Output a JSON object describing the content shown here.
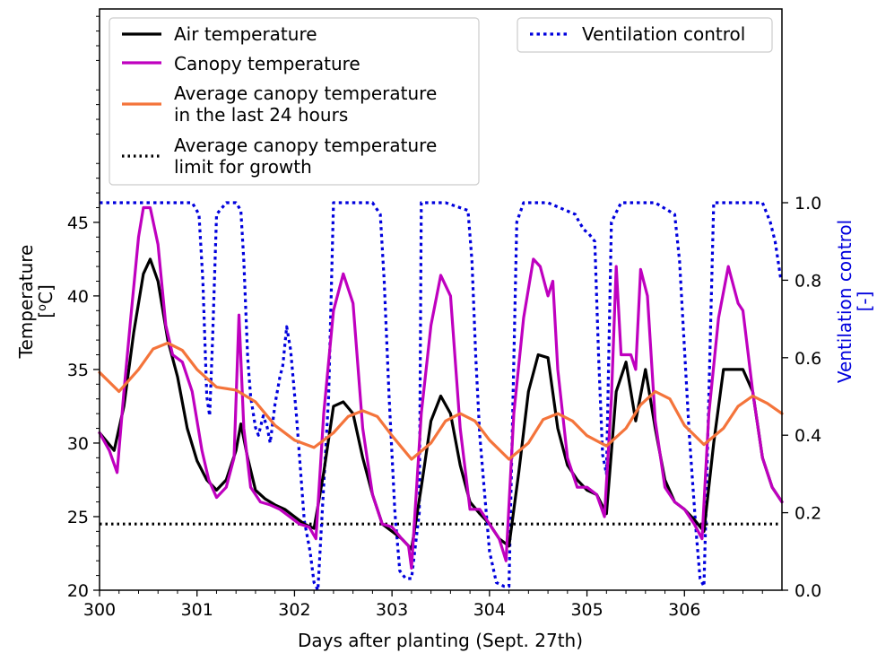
{
  "chart_data": {
    "type": "line",
    "xlabel": "Days after planting (Sept. 27th)",
    "ylabel_left_line1": "Temperature",
    "ylabel_left_line2_prefix": "[",
    "ylabel_left_line2_sup": "o",
    "ylabel_left_line2_suffix": "C]",
    "ylabel_right_line1": "Ventilation control",
    "ylabel_right_line2": "[-]",
    "xlim": [
      300,
      307
    ],
    "ylim_left": [
      20,
      59.5
    ],
    "ylim_right": [
      0,
      1.0
    ],
    "xticks": [
      300,
      301,
      302,
      303,
      304,
      305,
      306
    ],
    "xtick_labels": [
      "300",
      "301",
      "302",
      "303",
      "304",
      "305",
      "306"
    ],
    "yticks_left": [
      20,
      25,
      30,
      35,
      40,
      45
    ],
    "ytick_labels_left": [
      "20",
      "25",
      "30",
      "35",
      "40",
      "45"
    ],
    "yticks_right": [
      0.0,
      0.2,
      0.4,
      0.6,
      0.8,
      1.0
    ],
    "ytick_labels_right": [
      "0.0",
      "0.2",
      "0.4",
      "0.6",
      "0.8",
      "1.0"
    ],
    "grid": false,
    "legend_left": {
      "placement": "top-left",
      "entries": [
        {
          "lines": [
            "Air temperature"
          ],
          "color": "#000000",
          "style": "solid"
        },
        {
          "lines": [
            "Canopy temperature"
          ],
          "color": "#bf00bf",
          "style": "solid"
        },
        {
          "lines": [
            "Average canopy temperature",
            "in the last 24 hours"
          ],
          "color": "#f4743b",
          "style": "solid"
        },
        {
          "lines": [
            "Average canopy temperature",
            "limit for growth"
          ],
          "color": "#000000",
          "style": "dotted"
        }
      ]
    },
    "legend_right": {
      "placement": "top-right",
      "entries": [
        {
          "lines": [
            "Ventilation control"
          ],
          "color": "#0000dd",
          "style": "dotted"
        }
      ]
    },
    "series": [
      {
        "name": "Air temperature",
        "axis": "left",
        "color": "#000000",
        "style": "solid",
        "x": [
          300.0,
          300.15,
          300.25,
          300.35,
          300.45,
          300.52,
          300.6,
          300.7,
          300.8,
          300.9,
          301.0,
          301.1,
          301.2,
          301.3,
          301.4,
          301.45,
          301.52,
          301.6,
          301.7,
          301.8,
          301.9,
          302.0,
          302.1,
          302.2,
          302.3,
          302.4,
          302.5,
          302.6,
          302.7,
          302.8,
          302.9,
          303.0,
          303.1,
          303.2,
          303.3,
          303.4,
          303.5,
          303.6,
          303.7,
          303.8,
          303.9,
          304.0,
          304.1,
          304.2,
          304.3,
          304.4,
          304.5,
          304.6,
          304.7,
          304.8,
          304.9,
          305.0,
          305.1,
          305.2,
          305.3,
          305.4,
          305.5,
          305.6,
          305.7,
          305.8,
          305.9,
          306.0,
          306.1,
          306.2,
          306.3,
          306.4,
          306.5,
          306.6,
          306.7,
          306.8,
          306.9,
          307.0
        ],
        "y": [
          30.7,
          29.5,
          32.5,
          37.5,
          41.5,
          42.5,
          41.0,
          37.0,
          34.5,
          31.0,
          28.8,
          27.5,
          26.8,
          27.5,
          29.5,
          31.3,
          29.0,
          26.8,
          26.2,
          25.8,
          25.5,
          25.0,
          24.5,
          24.2,
          28.0,
          32.5,
          32.8,
          32.0,
          29.0,
          26.5,
          24.5,
          24.0,
          23.5,
          22.8,
          27.0,
          31.5,
          33.2,
          32.0,
          28.5,
          26.0,
          25.2,
          24.5,
          23.5,
          23.0,
          28.0,
          33.5,
          36.0,
          35.8,
          31.0,
          28.5,
          27.5,
          26.8,
          26.5,
          25.2,
          33.5,
          35.5,
          31.5,
          35.0,
          31.0,
          27.5,
          26.0,
          25.5,
          24.8,
          24.0,
          30.0,
          35.0,
          35.0,
          35.0,
          33.5,
          29.0,
          27.0,
          26.0
        ]
      },
      {
        "name": "Canopy temperature",
        "axis": "left",
        "color": "#bf00bf",
        "style": "solid",
        "x": [
          300.0,
          300.1,
          300.18,
          300.25,
          300.32,
          300.4,
          300.45,
          300.52,
          300.6,
          300.68,
          300.75,
          300.85,
          300.95,
          301.05,
          301.12,
          301.2,
          301.3,
          301.38,
          301.43,
          301.48,
          301.55,
          301.65,
          301.75,
          301.85,
          301.95,
          302.05,
          302.15,
          302.22,
          302.3,
          302.4,
          302.5,
          302.6,
          302.7,
          302.8,
          302.9,
          303.0,
          303.1,
          303.17,
          303.2,
          303.3,
          303.4,
          303.5,
          303.6,
          303.7,
          303.8,
          303.9,
          304.0,
          304.1,
          304.17,
          304.25,
          304.35,
          304.45,
          304.52,
          304.6,
          304.65,
          304.7,
          304.8,
          304.9,
          305.0,
          305.1,
          305.18,
          305.25,
          305.3,
          305.35,
          305.45,
          305.5,
          305.55,
          305.62,
          305.7,
          305.8,
          305.9,
          306.0,
          306.1,
          306.18,
          306.25,
          306.35,
          306.45,
          306.55,
          306.6,
          306.7,
          306.8,
          306.9,
          307.0
        ],
        "y": [
          30.7,
          29.5,
          28.0,
          33.5,
          38.5,
          44.0,
          46.0,
          46.0,
          43.5,
          38.0,
          36.0,
          35.5,
          33.5,
          29.5,
          27.5,
          26.3,
          27.0,
          29.0,
          38.7,
          31.0,
          27.0,
          26.0,
          25.8,
          25.5,
          25.0,
          24.5,
          24.3,
          23.5,
          32.0,
          39.0,
          41.5,
          39.5,
          31.0,
          26.5,
          24.5,
          24.3,
          23.5,
          23.0,
          21.5,
          32.0,
          38.0,
          41.4,
          40.0,
          31.0,
          25.5,
          25.5,
          24.5,
          23.5,
          22.0,
          32.0,
          38.5,
          42.5,
          42.0,
          40.0,
          41.0,
          35.0,
          29.0,
          27.0,
          27.0,
          26.5,
          25.0,
          33.0,
          42.0,
          36.0,
          36.0,
          35.0,
          41.8,
          40.0,
          31.5,
          27.0,
          26.0,
          25.5,
          24.5,
          23.5,
          32.0,
          38.5,
          42.0,
          39.5,
          39.0,
          33.5,
          29.0,
          27.0,
          26.0
        ]
      },
      {
        "name": "Average canopy temperature in the last 24 hours",
        "axis": "left",
        "color": "#f4743b",
        "style": "solid",
        "x": [
          300.0,
          300.2,
          300.4,
          300.55,
          300.7,
          300.85,
          301.0,
          301.2,
          301.4,
          301.6,
          301.8,
          302.0,
          302.2,
          302.4,
          302.55,
          302.7,
          302.85,
          303.0,
          303.2,
          303.4,
          303.55,
          303.7,
          303.85,
          304.0,
          304.2,
          304.4,
          304.55,
          304.7,
          304.85,
          305.0,
          305.2,
          305.4,
          305.55,
          305.7,
          305.85,
          306.0,
          306.2,
          306.4,
          306.55,
          306.7,
          306.85,
          307.0
        ],
        "y": [
          34.8,
          33.5,
          35.0,
          36.4,
          36.8,
          36.3,
          35.0,
          33.8,
          33.6,
          32.8,
          31.2,
          30.2,
          29.7,
          30.7,
          31.8,
          32.2,
          31.8,
          30.5,
          28.9,
          30.0,
          31.5,
          32.0,
          31.5,
          30.2,
          28.9,
          30.0,
          31.6,
          32.0,
          31.5,
          30.5,
          29.8,
          31.0,
          32.6,
          33.5,
          33.0,
          31.2,
          29.9,
          31.0,
          32.5,
          33.2,
          32.7,
          32.0
        ]
      },
      {
        "name": "Average canopy temperature limit for growth",
        "axis": "left",
        "color": "#000000",
        "style": "dotted",
        "x": [
          300.0,
          307.0
        ],
        "y": [
          24.5,
          24.5
        ]
      },
      {
        "name": "Ventilation control",
        "axis": "right",
        "color": "#0000dd",
        "style": "dotted",
        "x": [
          300.0,
          300.95,
          301.02,
          301.06,
          301.1,
          301.13,
          301.16,
          301.2,
          301.3,
          301.4,
          301.45,
          301.48,
          301.52,
          301.55,
          301.6,
          301.63,
          301.68,
          301.72,
          301.75,
          301.8,
          301.85,
          301.88,
          301.92,
          301.96,
          302.02,
          302.1,
          302.16,
          302.2,
          302.24,
          302.35,
          302.4,
          302.6,
          302.8,
          302.88,
          302.92,
          302.97,
          303.03,
          303.08,
          303.14,
          303.2,
          303.28,
          303.3,
          303.55,
          303.78,
          303.82,
          303.86,
          303.9,
          303.95,
          304.0,
          304.07,
          304.15,
          304.2,
          304.28,
          304.35,
          304.5,
          304.6,
          304.88,
          304.92,
          304.97,
          305.02,
          305.08,
          305.12,
          305.16,
          305.2,
          305.25,
          305.35,
          305.6,
          305.7,
          305.9,
          305.95,
          306.05,
          306.12,
          306.16,
          306.18,
          306.2,
          306.22,
          306.3,
          306.4,
          306.8,
          306.88,
          306.93,
          306.96,
          306.99
        ],
        "y": [
          1.0,
          1.0,
          0.97,
          0.8,
          0.5,
          0.45,
          0.65,
          0.97,
          1.0,
          1.0,
          0.98,
          0.85,
          0.6,
          0.5,
          0.42,
          0.4,
          0.45,
          0.42,
          0.38,
          0.48,
          0.55,
          0.58,
          0.68,
          0.62,
          0.45,
          0.18,
          0.1,
          0.02,
          0.0,
          0.5,
          1.0,
          1.0,
          1.0,
          0.97,
          0.8,
          0.5,
          0.2,
          0.05,
          0.03,
          0.03,
          0.2,
          1.0,
          1.0,
          0.98,
          0.85,
          0.6,
          0.4,
          0.25,
          0.1,
          0.02,
          0.01,
          0.01,
          0.95,
          1.0,
          1.0,
          1.0,
          0.97,
          0.95,
          0.93,
          0.92,
          0.9,
          0.6,
          0.35,
          0.3,
          0.95,
          1.0,
          1.0,
          1.0,
          0.97,
          0.85,
          0.4,
          0.15,
          0.03,
          0.02,
          0.01,
          0.2,
          1.0,
          1.0,
          1.0,
          0.95,
          0.9,
          0.85,
          0.8
        ]
      }
    ]
  }
}
